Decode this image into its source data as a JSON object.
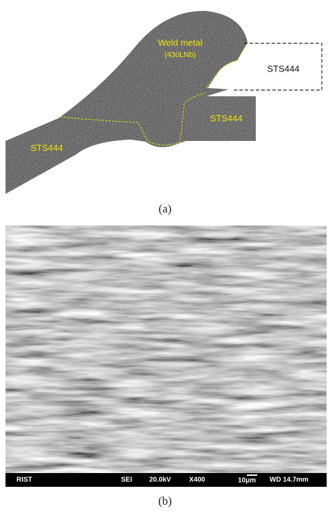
{
  "panel_a": {
    "labels": {
      "weld_metal": "Weld metal",
      "filler": "(430LNb)",
      "base_outline": "STS444",
      "base_right": "STS444",
      "base_left": "STS444"
    },
    "caption": "(a)"
  },
  "panel_b": {
    "info_bar": [
      "RIST",
      "SEI",
      "20.0kV",
      "X400",
      "10μm",
      "WD 14.7mm"
    ],
    "caption": "(b)"
  }
}
